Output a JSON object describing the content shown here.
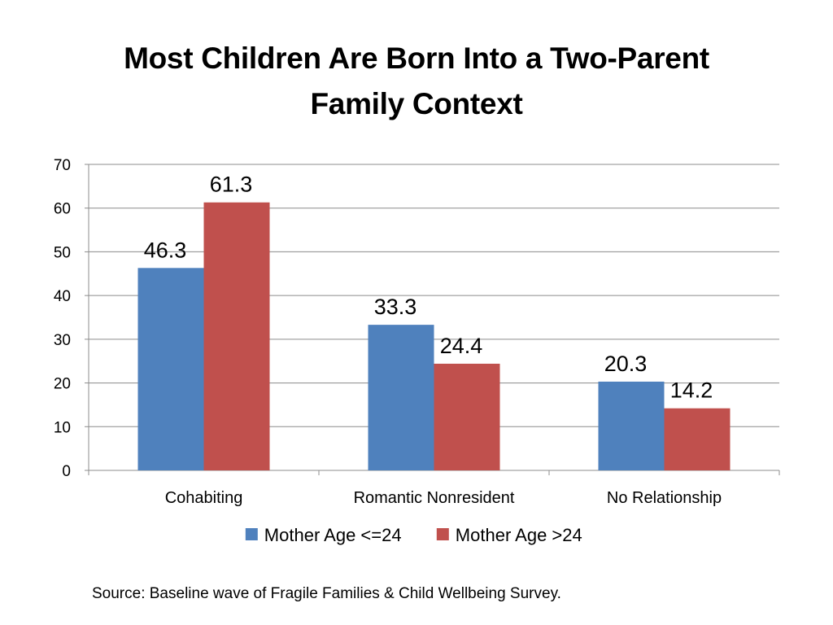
{
  "slide": {
    "title_line1": "Most Children Are Born Into a Two-Parent",
    "title_line2": "Family Context",
    "source": "Source: Baseline wave of Fragile Families & Child Wellbeing Survey."
  },
  "chart_data": {
    "type": "bar",
    "title": "",
    "xlabel": "",
    "ylabel": "",
    "categories": [
      "Cohabiting",
      "Romantic Nonresident",
      "No Relationship"
    ],
    "series": [
      {
        "name": "Mother Age <=24",
        "values": [
          46.3,
          33.3,
          20.3
        ],
        "color": "#4F81BD"
      },
      {
        "name": "Mother Age >24",
        "values": [
          61.3,
          24.4,
          14.2
        ],
        "color": "#C0504D"
      }
    ],
    "ylim": [
      0,
      70
    ],
    "yticks": [
      "0",
      "10",
      "20",
      "30",
      "40",
      "50",
      "60",
      "70"
    ],
    "grid": true,
    "data_labels": true,
    "legend_position": "bottom"
  }
}
